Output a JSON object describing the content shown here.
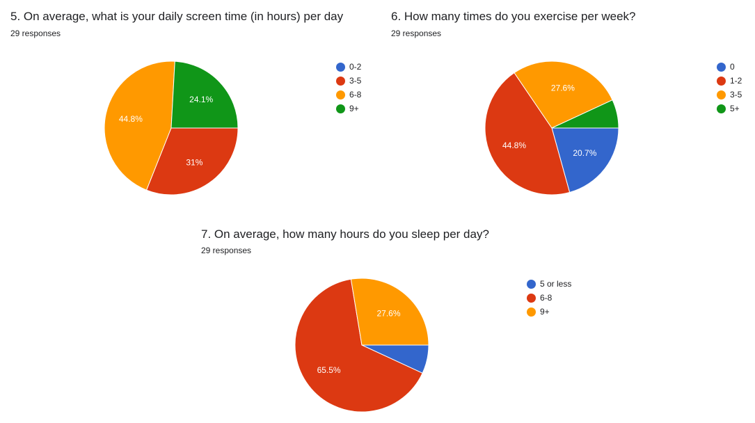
{
  "charts": [
    {
      "title": "5. On average, what is your daily screen time (in hours) per day",
      "responses": "29 responses"
    },
    {
      "title": "6. How many times do you exercise per week?",
      "responses": "29 responses"
    },
    {
      "title": "7. On average, how many hours do you sleep per day?",
      "responses": "29 responses"
    }
  ],
  "chart_data": [
    {
      "type": "pie",
      "title": "5. On average, what is your daily screen time (in hours) per day",
      "categories": [
        "0-2",
        "3-5",
        "6-8",
        "9+"
      ],
      "values": [
        0,
        31,
        44.8,
        24.1
      ],
      "labels": [
        "",
        "31%",
        "44.8%",
        "24.1%"
      ],
      "colors": [
        "#3366cc",
        "#dc3912",
        "#ff9900",
        "#109618"
      ],
      "legend": "right"
    },
    {
      "type": "pie",
      "title": "6. How many times do you exercise per week?",
      "categories": [
        "0",
        "1-2",
        "3-5",
        "5+"
      ],
      "values": [
        20.7,
        44.8,
        27.6,
        6.9
      ],
      "labels": [
        "20.7%",
        "44.8%",
        "27.6%",
        ""
      ],
      "colors": [
        "#3366cc",
        "#dc3912",
        "#ff9900",
        "#109618"
      ],
      "legend": "right"
    },
    {
      "type": "pie",
      "title": "7. On average, how many hours do you sleep per day?",
      "categories": [
        "5 or less",
        "6-8",
        "9+"
      ],
      "values": [
        6.9,
        65.5,
        27.6
      ],
      "labels": [
        "",
        "65.5%",
        "27.6%"
      ],
      "colors": [
        "#3366cc",
        "#dc3912",
        "#ff9900"
      ],
      "legend": "right"
    }
  ]
}
